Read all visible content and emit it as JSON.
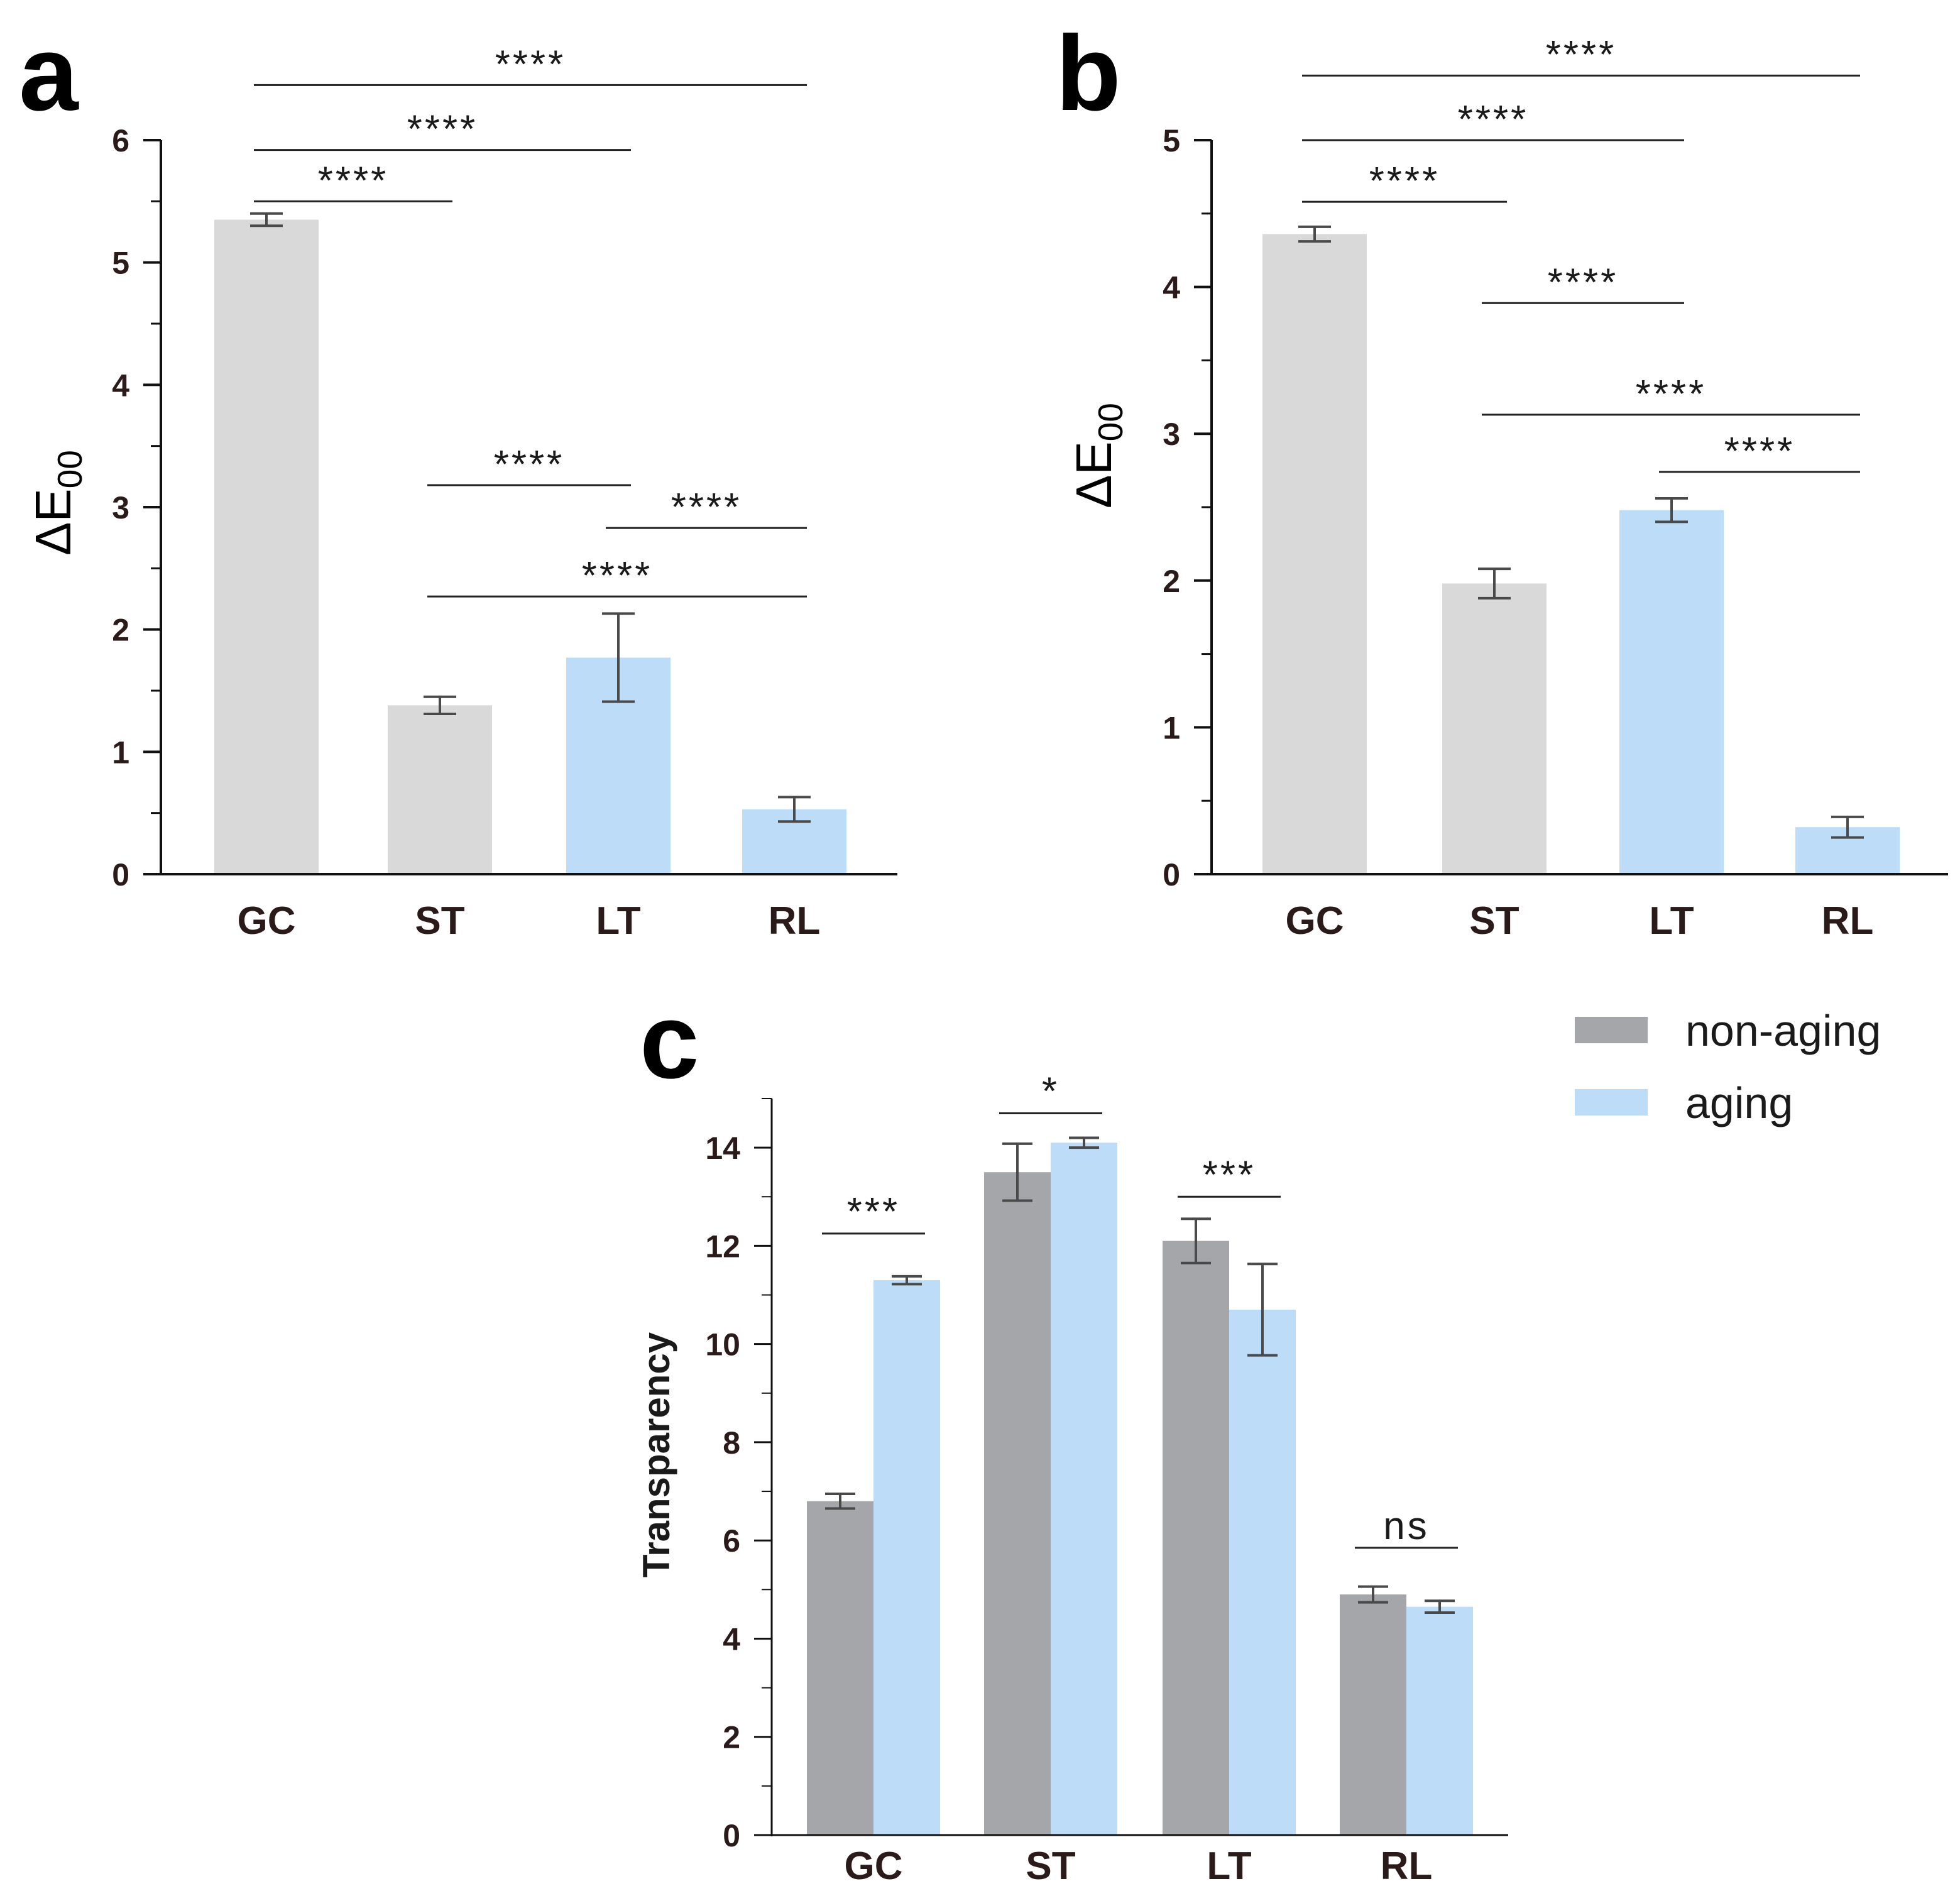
{
  "chart_data": [
    {
      "id": "a",
      "type": "bar",
      "panel_label": "a",
      "ylabel_main": "ΔE",
      "ylabel_sub": "00",
      "categories": [
        "GC",
        "ST",
        "LT",
        "RL"
      ],
      "values": [
        5.35,
        1.38,
        1.77,
        0.53
      ],
      "errors": [
        0.05,
        0.07,
        0.36,
        0.1
      ],
      "bar_colors": [
        "#d9d9d9",
        "#d9d9d9",
        "#bddcf7",
        "#bddcf7"
      ],
      "ylim": [
        0,
        6
      ],
      "yticks": [
        "0",
        "1",
        "2",
        "3",
        "4",
        "5",
        "6"
      ],
      "comparisons": [
        {
          "from": 0,
          "to": 3,
          "label": "****",
          "y": 6.45
        },
        {
          "from": 0,
          "to": 2,
          "label": "****",
          "y": 5.92
        },
        {
          "from": 0,
          "to": 1,
          "label": "****",
          "y": 5.5
        },
        {
          "from": 1,
          "to": 2,
          "label": "****",
          "y": 3.18
        },
        {
          "from": 2,
          "to": 3,
          "label": "****",
          "y": 2.83
        },
        {
          "from": 1,
          "to": 3,
          "label": "****",
          "y": 2.27
        }
      ]
    },
    {
      "id": "b",
      "type": "bar",
      "panel_label": "b",
      "ylabel_main": "ΔE",
      "ylabel_sub": "00",
      "categories": [
        "GC",
        "ST",
        "LT",
        "RL"
      ],
      "values": [
        4.36,
        1.98,
        2.48,
        0.32
      ],
      "errors": [
        0.05,
        0.1,
        0.08,
        0.07
      ],
      "bar_colors": [
        "#d9d9d9",
        "#d9d9d9",
        "#bddcf7",
        "#bddcf7"
      ],
      "ylim": [
        0,
        5
      ],
      "yticks": [
        "0",
        "1",
        "2",
        "3",
        "4",
        "5"
      ],
      "comparisons": [
        {
          "from": 0,
          "to": 3,
          "label": "****",
          "y": 5.44
        },
        {
          "from": 0,
          "to": 2,
          "label": "****",
          "y": 5.0
        },
        {
          "from": 0,
          "to": 1,
          "label": "****",
          "y": 4.58
        },
        {
          "from": 1,
          "to": 2,
          "label": "****",
          "y": 3.89
        },
        {
          "from": 1,
          "to": 3,
          "label": "****",
          "y": 3.13
        },
        {
          "from": 2,
          "to": 3,
          "label": "****",
          "y": 2.74
        }
      ]
    },
    {
      "id": "c",
      "type": "bar",
      "panel_label": "c",
      "ylabel": "Transparency",
      "categories": [
        "GC",
        "ST",
        "LT",
        "RL"
      ],
      "series": [
        {
          "name": "non-aging",
          "color": "#a5a6aa",
          "values": [
            6.8,
            13.5,
            12.1,
            4.9
          ],
          "errors": [
            0.15,
            0.58,
            0.45,
            0.16
          ]
        },
        {
          "name": "aging",
          "color": "#bddcf7",
          "values": [
            11.3,
            14.1,
            10.7,
            4.65
          ],
          "errors": [
            0.08,
            0.1,
            0.93,
            0.12
          ]
        }
      ],
      "ylim": [
        0,
        15
      ],
      "yticks": [
        "0",
        "2",
        "4",
        "6",
        "8",
        "10",
        "12",
        "14"
      ],
      "comparisons": [
        {
          "category": 0,
          "label": "***",
          "y": 12.25
        },
        {
          "category": 1,
          "label": "*",
          "y": 14.7
        },
        {
          "category": 2,
          "label": "***",
          "y": 13.0
        },
        {
          "category": 3,
          "label": "ns",
          "y": 5.85
        }
      ]
    }
  ]
}
